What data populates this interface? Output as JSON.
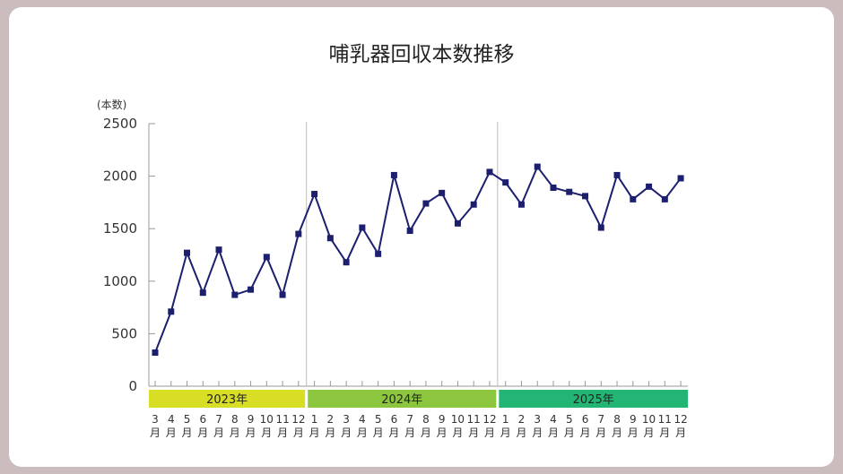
{
  "chart_data": {
    "type": "line",
    "title": "哺乳器回収本数推移",
    "ylabel": "(本数)",
    "xlabel": "",
    "ylim": [
      0,
      2500
    ],
    "yticks": [
      0,
      500,
      1000,
      1500,
      2000,
      2500
    ],
    "grid": false,
    "month_suffix": "月",
    "years": [
      {
        "label": "2023年",
        "color": "#d7de25",
        "months": [
          3,
          4,
          5,
          6,
          7,
          8,
          9,
          10,
          11,
          12
        ]
      },
      {
        "label": "2024年",
        "color": "#8cc63f",
        "months": [
          1,
          2,
          3,
          4,
          5,
          6,
          7,
          8,
          9,
          10,
          11,
          12
        ]
      },
      {
        "label": "2025年",
        "color": "#22b573",
        "months": [
          1,
          2,
          3,
          4,
          5,
          6,
          7,
          8,
          9,
          10,
          11,
          12
        ]
      }
    ],
    "series": [
      {
        "color": "#1b1f6e",
        "values": [
          320,
          710,
          1270,
          890,
          1300,
          870,
          920,
          1230,
          870,
          1450,
          1830,
          1410,
          1180,
          1510,
          1260,
          2010,
          1480,
          1740,
          1840,
          1550,
          1730,
          2040,
          1940,
          1730,
          2090,
          1890,
          1850,
          1810,
          1510,
          2010,
          1780,
          1900,
          1780,
          1980
        ]
      }
    ]
  }
}
